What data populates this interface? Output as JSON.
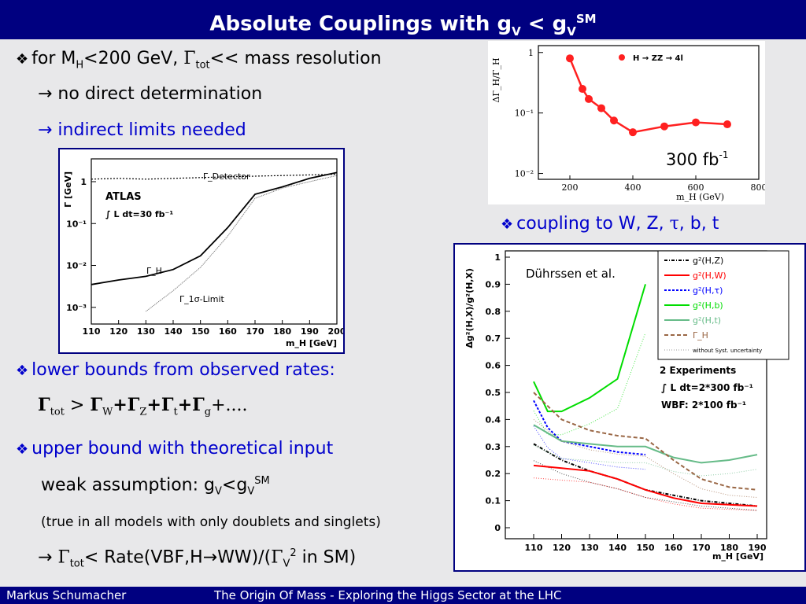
{
  "title": {
    "main": "Absolute Couplings with g",
    "sub1": "V",
    "mid": " < g",
    "sub2": "V",
    "sup": "SM"
  },
  "bullets": {
    "b1": {
      "text": "for M",
      "sub": "H",
      "rest": "<200 GeV, ",
      "gamma": "Γ",
      "gsub": "tot",
      "tail": "<< mass resolution"
    },
    "b1a": "→ no direct determination",
    "b1b": "→ indirect limits needed",
    "b2": "lower bounds from observed rates:",
    "b2a": {
      "g1": "Γ",
      "s1": "tot",
      "t1": " > ",
      "g2": "Γ",
      "s2": "W",
      "g3": "+Γ",
      "s3": "Z",
      "g4": "+Γ",
      "s4": "t",
      "g5": "+Γ",
      "s5": "g",
      "tail": "+...."
    },
    "b3": "upper bound with theoretical input",
    "b3a": {
      "t": "weak assumption: g",
      "s1": "V",
      "m": "<g",
      "s2": "V",
      "sup": "SM"
    },
    "b3b": "(true in all models with only doublets and singlets)",
    "b3c": {
      "arrow": "→ ",
      "g": "Γ",
      "s": "tot",
      "t": "< Rate(VBF,H",
      "a2": "→",
      "t2": "WW)/(",
      "g2": "Γ",
      "s2": "V",
      "sup": "2",
      "t3": " in SM)"
    },
    "b4": {
      "text": "coupling to W, Z, ",
      "tau": "τ",
      "rest": ", b, t"
    }
  },
  "footer": {
    "author": "Markus  Schumacher",
    "talk": "The Origin Of Mass - Exploring the Higgs Sector at the LHC"
  },
  "chart_data": [
    {
      "type": "line",
      "ylabel": "Γ [GeV]",
      "xlabel": "m_H [GeV]",
      "x_ticks": [
        "110",
        "120",
        "130",
        "140",
        "150",
        "160",
        "170",
        "180",
        "190",
        "200"
      ],
      "y_ticks": [
        "1",
        "10⁻¹",
        "10⁻²",
        "10⁻³"
      ],
      "log_y": true,
      "annotations": [
        "ATLAS",
        "∫ L dt=30 fb⁻¹",
        "Γ_Detector",
        "Γ_H",
        "Γ_1σ-Limit"
      ],
      "series": [
        {
          "name": "Γ_Detector",
          "x": [
            110,
            120,
            130,
            140,
            150,
            160,
            170,
            180,
            190,
            200
          ],
          "y": [
            1.15,
            1.2,
            1.15,
            1.2,
            1.25,
            1.3,
            1.35,
            1.4,
            1.45,
            1.5
          ]
        },
        {
          "name": "Γ_H",
          "x": [
            110,
            120,
            130,
            140,
            150,
            160,
            170,
            180,
            190,
            200
          ],
          "y": [
            0.0035,
            0.0045,
            0.0055,
            0.008,
            0.017,
            0.08,
            0.5,
            0.75,
            1.2,
            1.65
          ]
        },
        {
          "name": "Γ_1σ-Limit",
          "x": [
            130,
            140,
            150,
            160,
            170,
            180,
            190,
            200
          ],
          "y": [
            0.0008,
            0.0025,
            0.009,
            0.05,
            0.4,
            0.7,
            1.0,
            1.4
          ]
        }
      ]
    },
    {
      "type": "line",
      "ylabel": "ΔΓ_H/Γ_H",
      "xlabel": "m_H (GeV)",
      "x_ticks": [
        "200",
        "400",
        "600",
        "800"
      ],
      "y_ticks": [
        "1",
        "10⁻¹",
        "10⁻²"
      ],
      "log_y": true,
      "legend": "H → ZZ → 4l",
      "annotation": "300 fb⁻¹",
      "series": [
        {
          "name": "H → ZZ → 4l",
          "x": [
            200,
            240,
            260,
            300,
            340,
            400,
            500,
            600,
            700
          ],
          "y": [
            0.8,
            0.25,
            0.17,
            0.12,
            0.075,
            0.048,
            0.06,
            0.07,
            0.065
          ]
        }
      ]
    },
    {
      "type": "line",
      "ylabel": "Δg²(H,X)/g²(H,X)",
      "xlabel": "m_H [GeV]",
      "x_ticks": [
        "110",
        "120",
        "130",
        "140",
        "150",
        "160",
        "170",
        "180",
        "190"
      ],
      "y_ticks": [
        "0",
        "0.1",
        "0.2",
        "0.3",
        "0.4",
        "0.5",
        "0.6",
        "0.7",
        "0.8",
        "0.9",
        "1"
      ],
      "ylim": [
        0,
        1
      ],
      "annotations": [
        "Dührssen et al.",
        "2 Experiments",
        "∫ L dt=2*300 fb⁻¹",
        "WBF: 2*100 fb⁻¹"
      ],
      "legend_extra": "without Syst. uncertainty",
      "series": [
        {
          "name": "g²(H,Z)",
          "color": "#000000",
          "x": [
            110,
            120,
            130,
            140,
            150,
            160,
            170,
            180,
            190
          ],
          "y": [
            0.31,
            0.25,
            0.21,
            0.18,
            0.14,
            0.12,
            0.1,
            0.09,
            0.08
          ]
        },
        {
          "name": "g²(H,W)",
          "color": "#ff0000",
          "x": [
            110,
            120,
            130,
            140,
            150,
            160,
            170,
            180,
            190
          ],
          "y": [
            0.23,
            0.22,
            0.21,
            0.18,
            0.14,
            0.11,
            0.09,
            0.085,
            0.08
          ]
        },
        {
          "name": "g²(H,τ)",
          "color": "#0000ff",
          "x": [
            110,
            115,
            120,
            130,
            140,
            150
          ],
          "y": [
            0.47,
            0.37,
            0.32,
            0.3,
            0.28,
            0.27
          ]
        },
        {
          "name": "g²(H,b)",
          "color": "#00dd00",
          "x": [
            110,
            115,
            120,
            130,
            140,
            150
          ],
          "y": [
            0.54,
            0.43,
            0.43,
            0.48,
            0.55,
            0.9
          ]
        },
        {
          "name": "g²(H,t)",
          "color": "#66bb88",
          "x": [
            110,
            120,
            130,
            140,
            150,
            160,
            170,
            180,
            190
          ],
          "y": [
            0.38,
            0.32,
            0.31,
            0.3,
            0.3,
            0.26,
            0.24,
            0.25,
            0.27
          ]
        },
        {
          "name": "Γ_H",
          "color": "#996644",
          "x": [
            110,
            120,
            130,
            140,
            150,
            160,
            170,
            180,
            190
          ],
          "y": [
            0.5,
            0.4,
            0.36,
            0.34,
            0.33,
            0.25,
            0.18,
            0.15,
            0.14
          ]
        }
      ]
    }
  ]
}
